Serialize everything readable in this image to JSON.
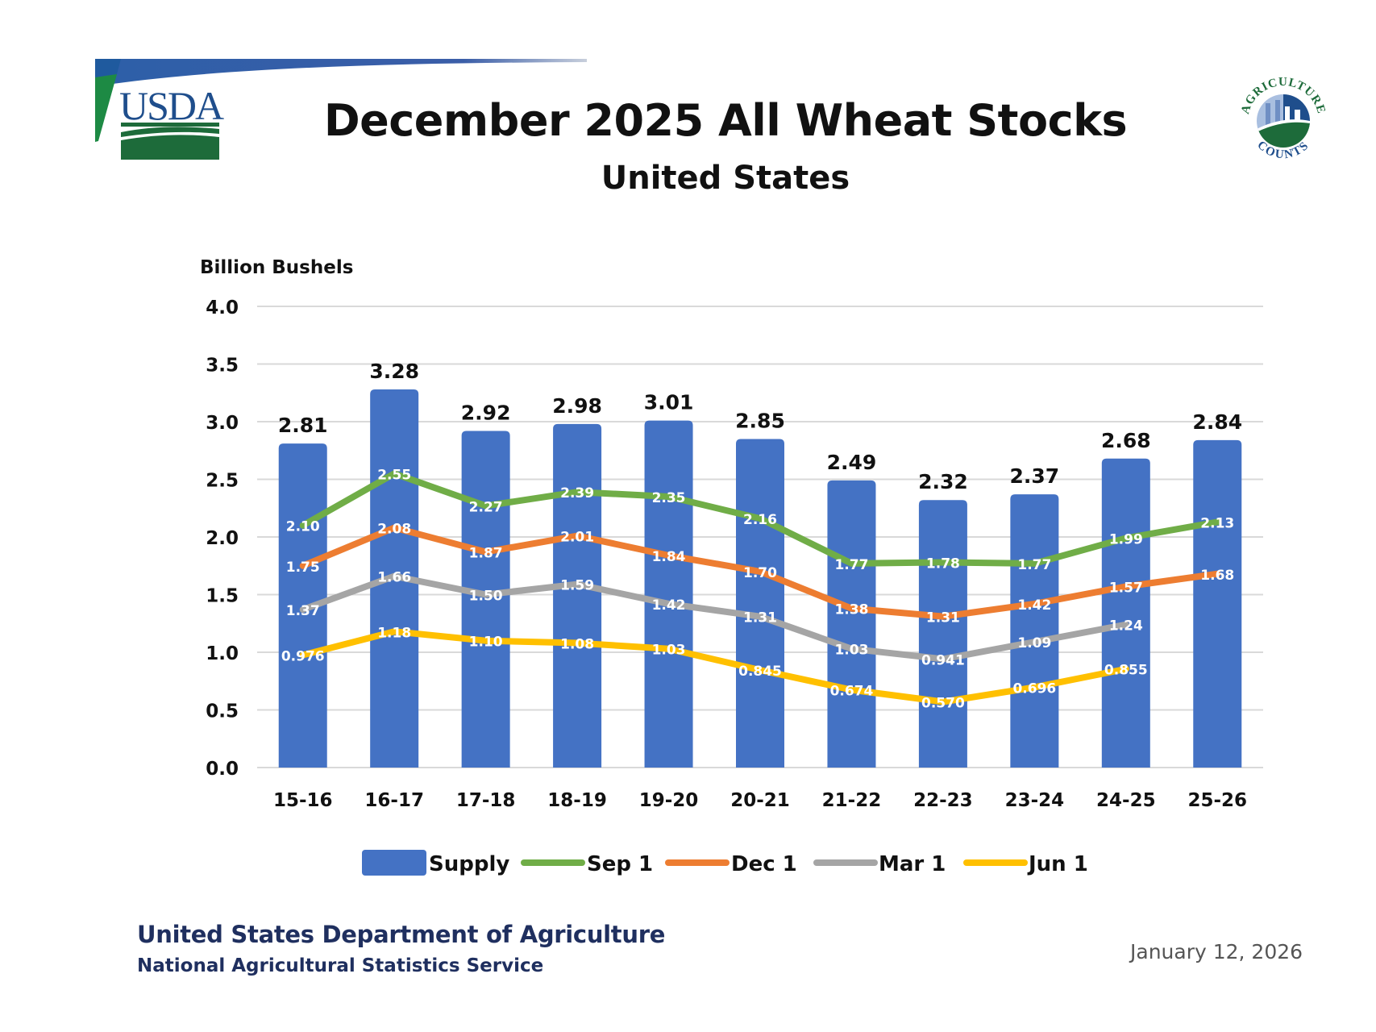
{
  "header": {
    "title": "December 2025 All Wheat Stocks",
    "subtitle": "United States",
    "logo_left": "USDA",
    "logo_right_top": "AGRICULTURE",
    "logo_right_bottom": "COUNTS"
  },
  "footer": {
    "department": "United States Department of Agriculture",
    "agency": "National Agricultural Statistics Service",
    "date": "January 12, 2026"
  },
  "colors": {
    "supply": "#4472c4",
    "sep1": "#70ad47",
    "dec1": "#ed7d31",
    "mar1": "#a5a5a5",
    "jun1": "#ffc000",
    "usda_blue": "#1f4e8c",
    "usda_green": "#1d6b3a"
  },
  "chart_data": {
    "type": "bar+line",
    "title": "December 2025 All Wheat Stocks",
    "subtitle": "United States",
    "ylabel": "Billion Bushels",
    "xlabel": "",
    "ylim": [
      0,
      4.0
    ],
    "yticks": [
      "0.0",
      "0.5",
      "1.0",
      "1.5",
      "2.0",
      "2.5",
      "3.0",
      "3.5",
      "4.0"
    ],
    "grid": true,
    "legend_position": "bottom",
    "categories": [
      "15-16",
      "16-17",
      "17-18",
      "18-19",
      "19-20",
      "20-21",
      "21-22",
      "22-23",
      "23-24",
      "24-25",
      "25-26"
    ],
    "series": [
      {
        "name": "Supply",
        "kind": "bar",
        "color": "#4472c4",
        "values": [
          2.81,
          3.28,
          2.92,
          2.98,
          3.01,
          2.85,
          2.49,
          2.32,
          2.37,
          2.68,
          2.84
        ],
        "labels": [
          "2.81",
          "3.28",
          "2.92",
          "2.98",
          "3.01",
          "2.85",
          "2.49",
          "2.32",
          "2.37",
          "2.68",
          "2.84"
        ]
      },
      {
        "name": "Sep 1",
        "kind": "line",
        "color": "#70ad47",
        "values": [
          2.1,
          2.55,
          2.27,
          2.39,
          2.35,
          2.16,
          1.77,
          1.78,
          1.77,
          1.99,
          2.13
        ],
        "labels": [
          "2.10",
          "2.55",
          "2.27",
          "2.39",
          "2.35",
          "2.16",
          "1.77",
          "1.78",
          "1.77",
          "1.99",
          "2.13"
        ]
      },
      {
        "name": "Dec 1",
        "kind": "line",
        "color": "#ed7d31",
        "values": [
          1.75,
          2.08,
          1.87,
          2.01,
          1.84,
          1.7,
          1.38,
          1.31,
          1.42,
          1.57,
          1.68
        ],
        "labels": [
          "1.75",
          "2.08",
          "1.87",
          "2.01",
          "1.84",
          "1.70",
          "1.38",
          "1.31",
          "1.42",
          "1.57",
          "1.68"
        ]
      },
      {
        "name": "Mar 1",
        "kind": "line",
        "color": "#a5a5a5",
        "values": [
          1.37,
          1.66,
          1.5,
          1.59,
          1.42,
          1.31,
          1.03,
          0.941,
          1.09,
          1.24,
          null
        ],
        "labels": [
          "1.37",
          "1.66",
          "1.50",
          "1.59",
          "1.42",
          "1.31",
          "1.03",
          "0.941",
          "1.09",
          "1.24",
          null
        ]
      },
      {
        "name": "Jun 1",
        "kind": "line",
        "color": "#ffc000",
        "values": [
          0.976,
          1.18,
          1.1,
          1.08,
          1.03,
          0.845,
          0.674,
          0.57,
          0.696,
          0.855,
          null
        ],
        "labels": [
          "0.976",
          "1.18",
          "1.10",
          "1.08",
          "1.03",
          "0.845",
          "0.674",
          "0.570",
          "0.696",
          "0.855",
          null
        ]
      }
    ]
  }
}
